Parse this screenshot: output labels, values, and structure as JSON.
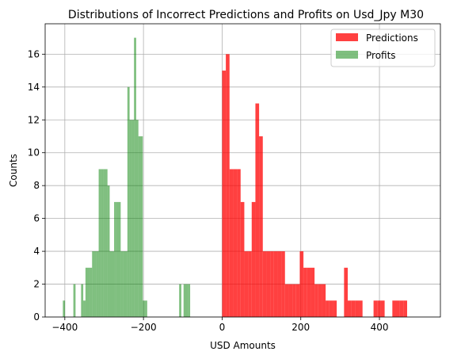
{
  "chart_data": {
    "type": "bar",
    "title": "Distributions of Incorrect Predictions and Profits on Usd_Jpy M30",
    "xlabel": "USD Amounts",
    "ylabel": "Counts",
    "xlim": [
      -450,
      555
    ],
    "ylim": [
      0,
      17.85
    ],
    "xticks": [
      -400,
      -200,
      0,
      200,
      400
    ],
    "xtick_labels": [
      "−400",
      "−200",
      "0",
      "200",
      "400"
    ],
    "yticks": [
      0,
      2,
      4,
      6,
      8,
      10,
      12,
      14,
      16
    ],
    "yticks_labels": [
      "0",
      "2",
      "4",
      "6",
      "8",
      "10",
      "12",
      "14",
      "16"
    ],
    "grid": true,
    "legend_position": "top-right",
    "series": [
      {
        "name": "Predictions",
        "color": "#ff0000",
        "opacity": 0.75,
        "bins": [
          [
            0,
            9.4,
            15
          ],
          [
            9.4,
            18.8,
            16
          ],
          [
            18.8,
            28.2,
            9
          ],
          [
            28.2,
            37.6,
            9
          ],
          [
            37.6,
            47,
            9
          ],
          [
            47,
            56.4,
            7
          ],
          [
            56.4,
            65.8,
            4
          ],
          [
            65.8,
            75.2,
            4
          ],
          [
            75.2,
            84.6,
            7
          ],
          [
            84.6,
            94,
            13
          ],
          [
            94,
            103.4,
            11
          ],
          [
            103.4,
            112.8,
            4
          ],
          [
            112.8,
            122.2,
            4
          ],
          [
            122.2,
            131.6,
            4
          ],
          [
            131.6,
            141,
            4
          ],
          [
            141,
            150.4,
            4
          ],
          [
            150.4,
            159.8,
            4
          ],
          [
            159.8,
            169.2,
            2
          ],
          [
            169.2,
            178.6,
            2
          ],
          [
            178.6,
            188,
            2
          ],
          [
            188,
            197.4,
            2
          ],
          [
            197.4,
            206.8,
            4
          ],
          [
            206.8,
            216.2,
            3
          ],
          [
            216.2,
            225.6,
            3
          ],
          [
            225.6,
            235,
            3
          ],
          [
            235,
            244.4,
            2
          ],
          [
            244.4,
            253.8,
            2
          ],
          [
            253.8,
            263.2,
            2
          ],
          [
            263.2,
            272.6,
            1
          ],
          [
            272.6,
            282,
            1
          ],
          [
            282,
            291.4,
            1
          ],
          [
            310,
            319.4,
            3
          ],
          [
            319.4,
            328.8,
            1
          ],
          [
            328.8,
            338.2,
            1
          ],
          [
            338.2,
            347.6,
            1
          ],
          [
            347.6,
            357,
            1
          ],
          [
            385,
            394.4,
            1
          ],
          [
            394.4,
            403.8,
            1
          ],
          [
            403.8,
            413.2,
            1
          ],
          [
            432.8,
            442.2,
            1
          ],
          [
            442.2,
            451.6,
            1
          ],
          [
            451.6,
            461,
            1
          ],
          [
            461,
            470.4,
            1
          ]
        ]
      },
      {
        "name": "Profits",
        "color": "#008000",
        "opacity": 0.5,
        "bins": [
          [
            -405,
            -399.4,
            1
          ],
          [
            -378.3,
            -372.7,
            2
          ],
          [
            -358.7,
            -353.1,
            2
          ],
          [
            -353.1,
            -347.5,
            1
          ],
          [
            -347.5,
            -336.3,
            3
          ],
          [
            -336.3,
            -330.7,
            3
          ],
          [
            -330.7,
            -325.1,
            4
          ],
          [
            -325.1,
            -319.5,
            4
          ],
          [
            -319.5,
            -313.9,
            4
          ],
          [
            -313.9,
            -308.3,
            9
          ],
          [
            -308.3,
            -302.7,
            9
          ],
          [
            -302.7,
            -297.1,
            9
          ],
          [
            -297.1,
            -291.5,
            9
          ],
          [
            -291.5,
            -285.9,
            8
          ],
          [
            -285.9,
            -274.7,
            4
          ],
          [
            -274.7,
            -269.1,
            7
          ],
          [
            -269.1,
            -257.9,
            7
          ],
          [
            -257.9,
            -252.3,
            4
          ],
          [
            -252.3,
            -240.9,
            4
          ],
          [
            -240.9,
            -235.3,
            14
          ],
          [
            -235.3,
            -229.7,
            12
          ],
          [
            -229.7,
            -224.1,
            12
          ],
          [
            -224.1,
            -218.5,
            17
          ],
          [
            -218.5,
            -212.9,
            12
          ],
          [
            -212.9,
            -207.3,
            11
          ],
          [
            -207.3,
            -201.7,
            11
          ],
          [
            -201.7,
            -196.1,
            1
          ],
          [
            -196.1,
            -190.5,
            1
          ],
          [
            -109.3,
            -103.7,
            2
          ],
          [
            -98.1,
            -92.5,
            2
          ],
          [
            -92.5,
            -86.9,
            2
          ],
          [
            -86.9,
            -81.3,
            2
          ]
        ]
      }
    ]
  }
}
